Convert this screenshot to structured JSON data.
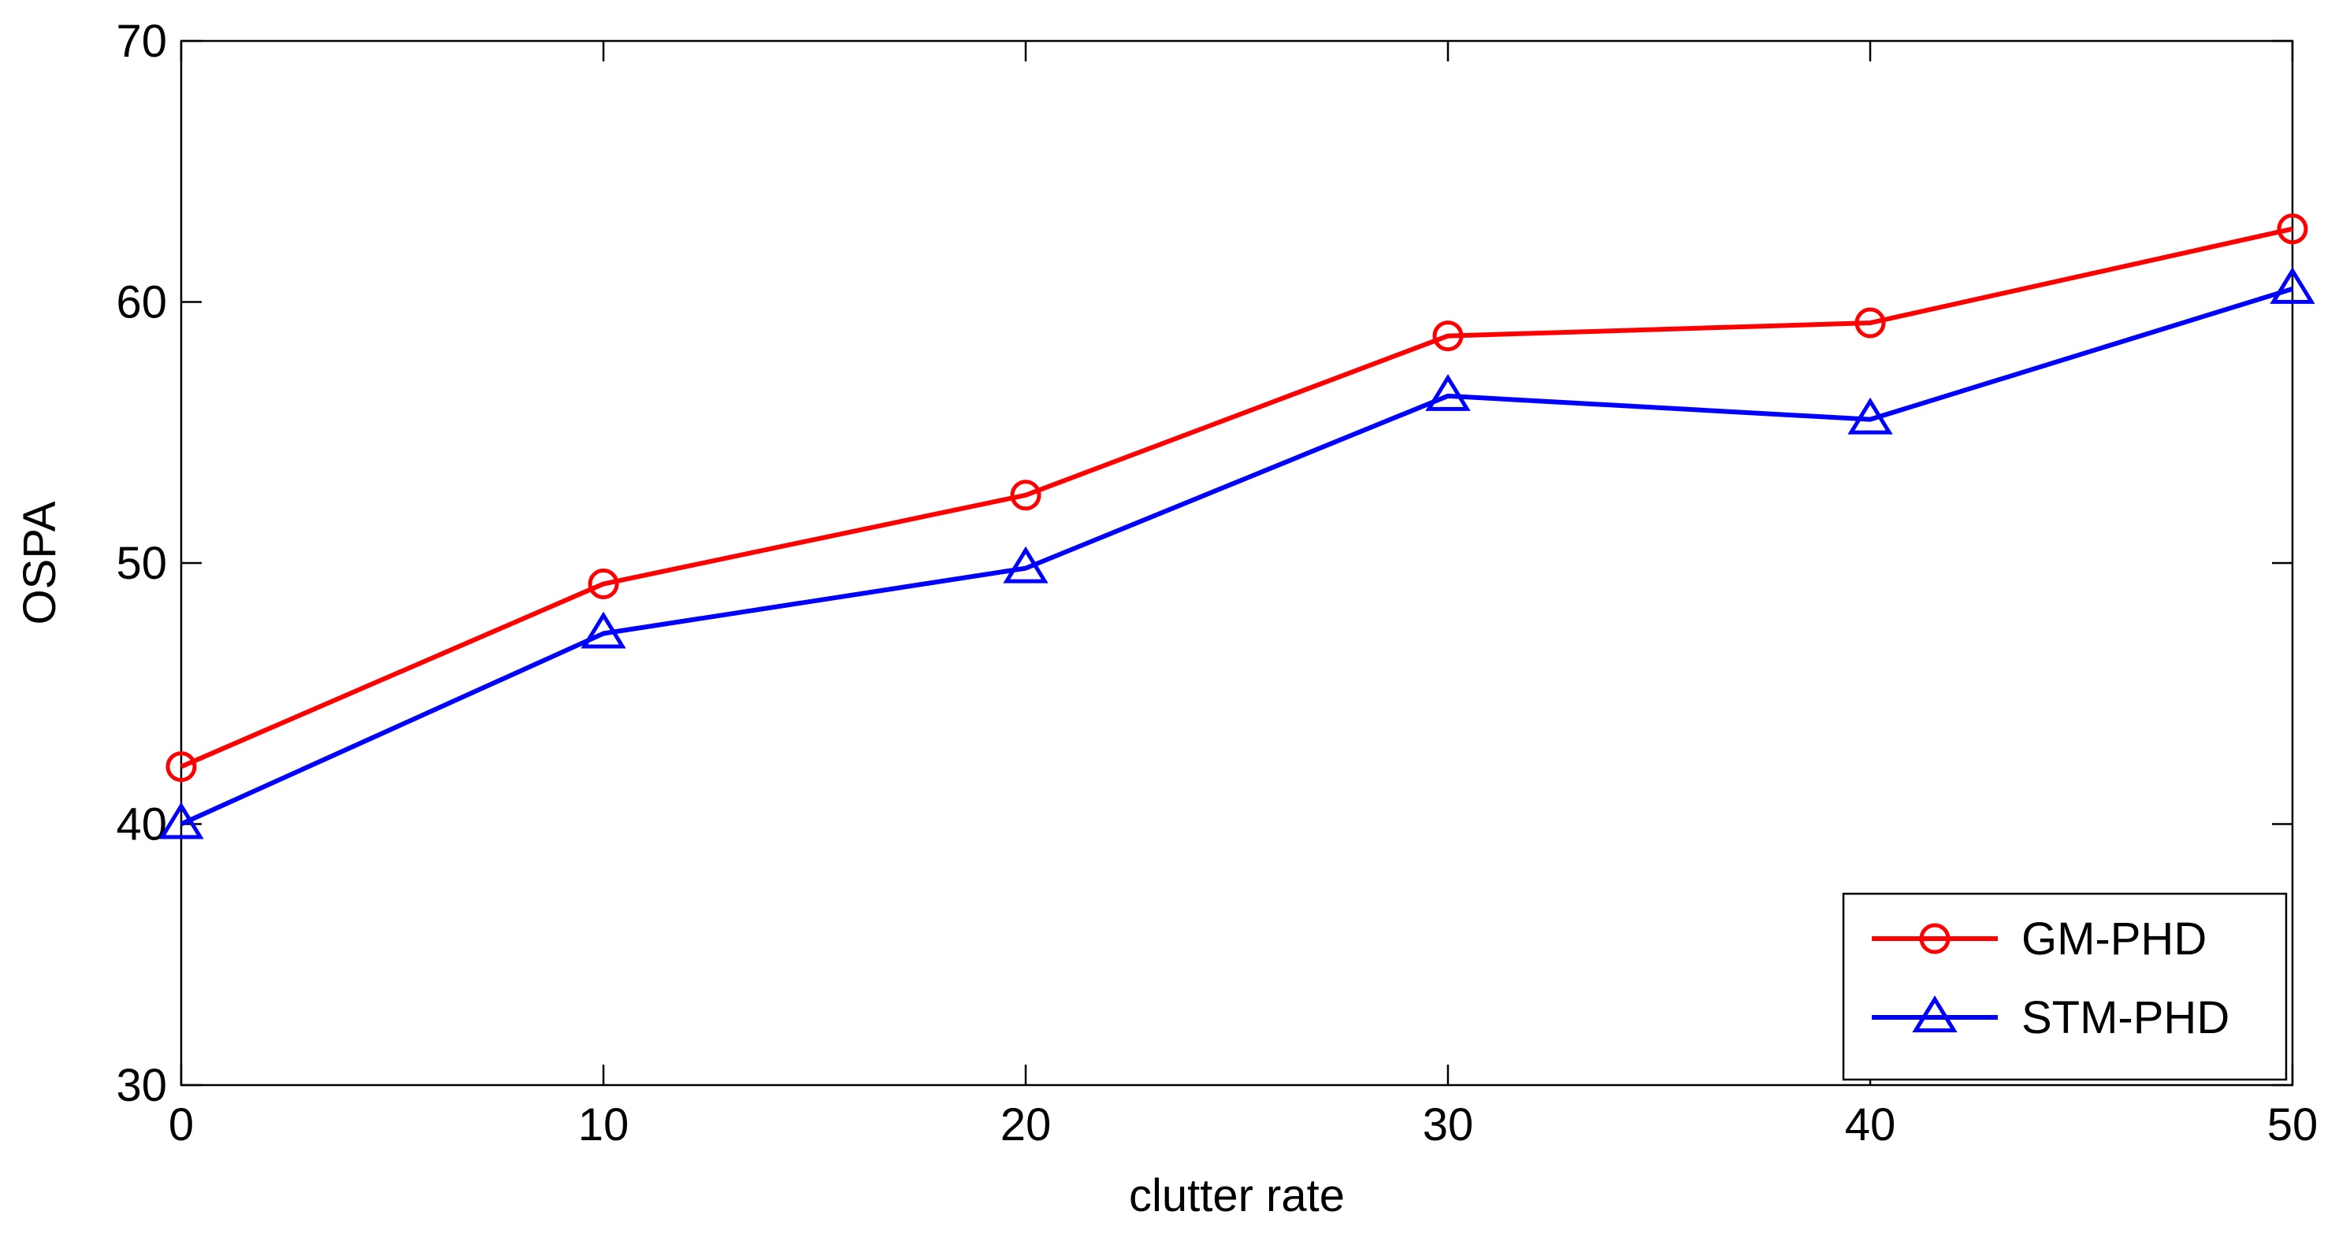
{
  "chart_data": {
    "type": "line",
    "title": "",
    "xlabel": "clutter rate",
    "ylabel": "OSPA",
    "x": [
      0,
      10,
      20,
      30,
      40,
      50
    ],
    "xlim": [
      0,
      50
    ],
    "ylim": [
      30,
      70
    ],
    "xticks": [
      0,
      10,
      20,
      30,
      40,
      50
    ],
    "yticks": [
      30,
      40,
      50,
      60,
      70
    ],
    "grid": false,
    "legend_position": "bottom-right",
    "series": [
      {
        "name": "GM-PHD",
        "values": [
          42.2,
          49.2,
          52.6,
          58.7,
          59.2,
          62.8
        ],
        "color": "#ff0000",
        "marker": "circle"
      },
      {
        "name": "STM-PHD",
        "values": [
          40.0,
          47.3,
          49.8,
          56.4,
          55.5,
          60.5
        ],
        "color": "#0000ff",
        "marker": "triangle"
      }
    ]
  }
}
